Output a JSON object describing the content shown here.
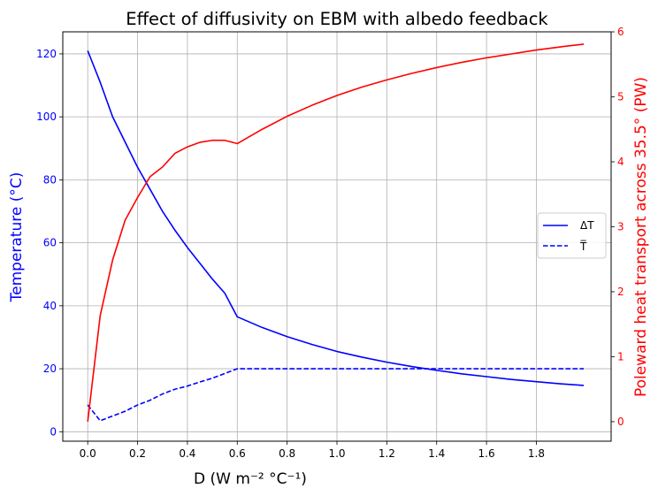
{
  "chart_data": {
    "type": "line",
    "title": "Effect of diffusivity on EBM with albedo feedback",
    "xlabel": "D (W m⁻² °C⁻¹)",
    "ylabel_left": "Temperature (°C)",
    "ylabel_right": "Poleward heat transport across 35.5° (PW)",
    "xlim": [
      -0.1,
      2.1
    ],
    "ylim_left": [
      -3,
      127
    ],
    "ylim_right": [
      -0.3,
      6.0
    ],
    "x_ticks": [
      0.0,
      0.2,
      0.4,
      0.6,
      0.8,
      1.0,
      1.2,
      1.4,
      1.6,
      1.8
    ],
    "x_tick_labels": [
      "0.0",
      "0.2",
      "0.4",
      "0.6",
      "0.8",
      "1.0",
      "1.2",
      "1.4",
      "1.6",
      "1.8"
    ],
    "y_left_ticks": [
      0,
      20,
      40,
      60,
      80,
      100,
      120
    ],
    "y_left_tick_labels": [
      "0",
      "20",
      "40",
      "60",
      "80",
      "100",
      "120"
    ],
    "y_right_ticks": [
      0,
      1,
      2,
      3,
      4,
      5,
      6
    ],
    "y_right_tick_labels": [
      "0",
      "1",
      "2",
      "3",
      "4",
      "5",
      "6"
    ],
    "grid": true,
    "legend_position": "right",
    "colors": {
      "left_axis": "#0000ff",
      "right_axis": "#ff0000"
    },
    "series": [
      {
        "name": "ΔT",
        "axis": "left",
        "color": "#0000ff",
        "style": "solid",
        "x": [
          0.0,
          0.05,
          0.1,
          0.15,
          0.2,
          0.25,
          0.3,
          0.35,
          0.4,
          0.45,
          0.5,
          0.55,
          0.6,
          0.7,
          0.8,
          0.9,
          1.0,
          1.1,
          1.2,
          1.3,
          1.4,
          1.5,
          1.6,
          1.7,
          1.8,
          1.9,
          1.99
        ],
        "y": [
          121,
          111,
          100,
          92,
          84,
          77,
          70,
          64,
          58.5,
          53.5,
          48.5,
          44,
          36.5,
          33.1,
          30.2,
          27.7,
          25.5,
          23.7,
          22.1,
          20.7,
          19.5,
          18.4,
          17.5,
          16.6,
          15.9,
          15.2,
          14.7
        ]
      },
      {
        "name": "T̅",
        "axis": "left",
        "color": "#0000ff",
        "style": "dashed",
        "x": [
          0.0,
          0.05,
          0.1,
          0.15,
          0.2,
          0.25,
          0.3,
          0.35,
          0.4,
          0.45,
          0.5,
          0.55,
          0.6,
          0.8,
          1.0,
          1.2,
          1.4,
          1.6,
          1.8,
          1.99
        ],
        "y": [
          8.5,
          3.5,
          5.0,
          6.5,
          8.5,
          10.0,
          12.0,
          13.5,
          14.5,
          15.8,
          17.0,
          18.5,
          20.0,
          20.0,
          20.0,
          20.0,
          20.0,
          20.0,
          20.0,
          20.0
        ]
      },
      {
        "name": "",
        "axis": "right",
        "color": "#ff0000",
        "style": "solid",
        "x": [
          0.0,
          0.05,
          0.1,
          0.15,
          0.2,
          0.25,
          0.3,
          0.35,
          0.4,
          0.45,
          0.5,
          0.55,
          0.6,
          0.7,
          0.8,
          0.9,
          1.0,
          1.1,
          1.2,
          1.3,
          1.4,
          1.5,
          1.6,
          1.7,
          1.8,
          1.9,
          1.99
        ],
        "y": [
          0.0,
          1.63,
          2.49,
          3.1,
          3.45,
          3.77,
          3.92,
          4.13,
          4.23,
          4.3,
          4.33,
          4.33,
          4.28,
          4.5,
          4.7,
          4.87,
          5.02,
          5.15,
          5.26,
          5.36,
          5.45,
          5.53,
          5.6,
          5.66,
          5.72,
          5.77,
          5.81
        ]
      }
    ],
    "legend": [
      {
        "label": "ΔT",
        "style": "solid",
        "color": "#0000ff"
      },
      {
        "label": "T̅",
        "style": "dashed",
        "color": "#0000ff"
      }
    ]
  }
}
